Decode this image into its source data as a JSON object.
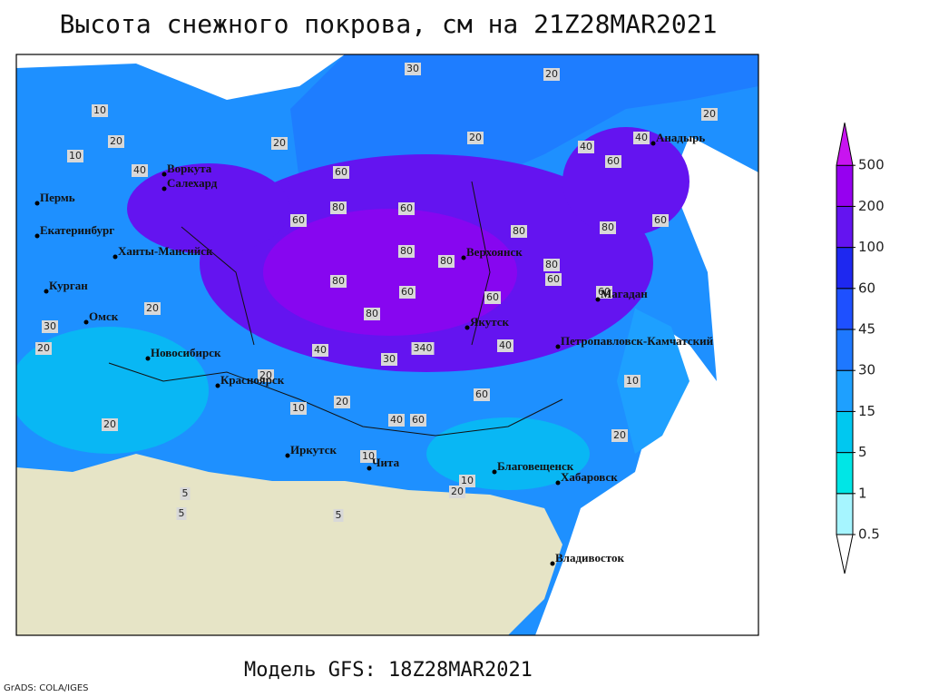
{
  "header": {
    "title": "Высота снежного покрова, см на 21Z28MAR2021"
  },
  "map": {
    "cities": [
      "Воркута",
      "Салехард",
      "Пермь",
      "Екатеринбург",
      "Ханты-Мансийск",
      "Курган",
      "Омск",
      "Новосибирск",
      "Красноярск",
      "Иркутск",
      "Чита",
      "Верхоянск",
      "Якутск",
      "Магадан",
      "Петропавловск-Камчатский",
      "Анадырь",
      "Благовещенск",
      "Хабаровск",
      "Владивосток"
    ],
    "contour_labels": [
      30,
      20,
      20,
      20,
      40,
      40,
      60,
      20,
      20,
      40,
      60,
      80,
      60,
      60,
      80,
      80,
      60,
      80,
      80,
      80,
      80,
      60,
      80,
      60,
      60,
      60,
      340,
      40,
      40,
      30,
      20,
      20,
      10,
      60,
      60,
      40,
      10,
      20,
      20,
      10,
      10,
      5,
      5,
      5,
      30,
      20,
      10,
      10,
      20,
      20
    ]
  },
  "colorbar": {
    "levels": [
      0.5,
      1,
      5,
      15,
      30,
      45,
      60,
      100,
      200,
      500
    ],
    "colors": [
      "#ffffff",
      "#a6f5ff",
      "#00e6e6",
      "#00c8f0",
      "#1ea0ff",
      "#1e78ff",
      "#1e50ff",
      "#1e28f0",
      "#6414f0",
      "#9600f0",
      "#c814f0"
    ]
  },
  "footer": {
    "model": "Модель GFS: 18Z28MAR2021",
    "credit": "GrADS: COLA/IGES"
  }
}
